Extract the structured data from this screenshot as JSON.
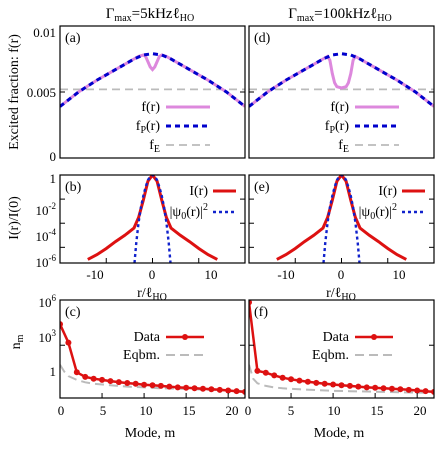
{
  "column_titles": [
    "Γmax=5kHzℓHO",
    "Γmax=100kHzℓHO"
  ],
  "legend_labels": {
    "f": "f(r)",
    "fP": "fP(r)",
    "fE": "fE",
    "I": "I(r)",
    "psi": "|ψ0(r)|2",
    "data": "Data",
    "eqbm": "Eqbm."
  },
  "colors": {
    "f": "#dd88dd",
    "fP": "#0000cc",
    "fE": "#bbbbbb",
    "I": "#dd1111",
    "psi": "#1122cc",
    "data": "#dd1111",
    "eqbm": "#bbbbbb"
  },
  "chart_data": [
    {
      "id": "a",
      "type": "line",
      "panel_label": "(a)",
      "ylabel": "Excited fraction: f(r)",
      "xlim": [
        -20,
        20
      ],
      "ylim": [
        0,
        0.01
      ],
      "yticks": [
        "0",
        "0.005",
        "0.01"
      ],
      "series": [
        {
          "name": "f(r)",
          "x": [
            -20,
            -16,
            -12,
            -8,
            -6,
            -4,
            -3,
            -2,
            -1.5,
            -1,
            -0.5,
            0,
            0.5,
            1,
            1.5,
            2,
            3,
            4,
            6,
            8,
            12,
            16,
            20
          ],
          "y": [
            0.0039,
            0.005,
            0.0059,
            0.0067,
            0.0071,
            0.0075,
            0.0077,
            0.0078,
            0.0077,
            0.0073,
            0.0069,
            0.0067,
            0.0069,
            0.0073,
            0.0077,
            0.0078,
            0.0077,
            0.0075,
            0.0071,
            0.0067,
            0.0059,
            0.005,
            0.0039
          ]
        },
        {
          "name": "fP(r)",
          "x": [
            -20,
            -16,
            -12,
            -8,
            -6,
            -4,
            -2,
            0,
            2,
            4,
            6,
            8,
            12,
            16,
            20
          ],
          "y": [
            0.0039,
            0.005,
            0.0059,
            0.0067,
            0.0071,
            0.0075,
            0.0078,
            0.0079,
            0.0078,
            0.0075,
            0.0071,
            0.0067,
            0.0059,
            0.005,
            0.0039
          ]
        },
        {
          "name": "fE",
          "x": [
            -20,
            20
          ],
          "y": [
            0.0052,
            0.0052
          ]
        }
      ]
    },
    {
      "id": "d",
      "type": "line",
      "panel_label": "(d)",
      "xlim": [
        -20,
        20
      ],
      "ylim": [
        0,
        0.01
      ],
      "series": [
        {
          "name": "f(r)",
          "x": [
            -20,
            -16,
            -12,
            -8,
            -6,
            -4,
            -3,
            -2.5,
            -2,
            -1.5,
            -1,
            0,
            1,
            1.5,
            2,
            2.5,
            3,
            4,
            6,
            8,
            12,
            16,
            20
          ],
          "y": [
            0.0039,
            0.005,
            0.0059,
            0.0067,
            0.0071,
            0.0075,
            0.0077,
            0.0074,
            0.0064,
            0.0057,
            0.0054,
            0.0053,
            0.0054,
            0.0057,
            0.0064,
            0.0074,
            0.0077,
            0.0075,
            0.0071,
            0.0067,
            0.0059,
            0.005,
            0.0039
          ]
        },
        {
          "name": "fP(r)",
          "x": [
            -20,
            -16,
            -12,
            -8,
            -6,
            -4,
            -2,
            0,
            2,
            4,
            6,
            8,
            12,
            16,
            20
          ],
          "y": [
            0.0039,
            0.005,
            0.0059,
            0.0067,
            0.0071,
            0.0075,
            0.0078,
            0.0079,
            0.0078,
            0.0075,
            0.0071,
            0.0067,
            0.0059,
            0.005,
            0.0039
          ]
        },
        {
          "name": "fE",
          "x": [
            -20,
            20
          ],
          "y": [
            0.0052,
            0.0052
          ]
        }
      ]
    },
    {
      "id": "b",
      "type": "line",
      "log_y": true,
      "panel_label": "(b)",
      "ylabel": "I(r)/I(0)",
      "xlim": [
        -20,
        20
      ],
      "ylim": [
        -7.3,
        0
      ],
      "yticks": [
        {
          "exp": 0,
          "label": "1"
        },
        {
          "exp": -2,
          "label": "10",
          "sup": "-2"
        },
        {
          "exp": -4,
          "label": "10",
          "sup": "-4"
        },
        {
          "exp": -6,
          "label": "10",
          "sup": "-6"
        }
      ],
      "series": [
        {
          "name": "I(r)",
          "x": [
            -14,
            -12,
            -10,
            -8,
            -6,
            -4,
            -3,
            -2,
            -1,
            0,
            1,
            2,
            3,
            4,
            6,
            8,
            10,
            12,
            14
          ],
          "y": [
            1e-07,
            2.5e-07,
            8e-07,
            3e-06,
            1e-05,
            4e-05,
            0.0003,
            0.008,
            0.3,
            1,
            0.3,
            0.008,
            0.0003,
            4e-05,
            1e-05,
            3e-06,
            8e-07,
            2.5e-07,
            1e-07
          ]
        },
        {
          "name": "|ψ0(r)|2",
          "x": [
            -3.9,
            -3.5,
            -3,
            -2.5,
            -2,
            -1.5,
            -1,
            -0.5,
            0,
            0.5,
            1,
            1.5,
            2,
            2.5,
            3,
            3.5,
            3.9
          ],
          "y": [
            5e-08,
            2.5e-06,
            0.00012,
            0.002,
            0.018,
            0.1,
            0.37,
            0.78,
            1,
            0.78,
            0.37,
            0.1,
            0.018,
            0.002,
            0.00012,
            2.5e-06,
            5e-08
          ]
        }
      ]
    },
    {
      "id": "e",
      "type": "line",
      "log_y": true,
      "panel_label": "(e)",
      "xlim": [
        -20,
        20
      ],
      "ylim": [
        -7.3,
        0
      ],
      "series": [
        {
          "name": "I(r)",
          "x": [
            -14,
            -12,
            -10,
            -8,
            -6,
            -4,
            -3,
            -2,
            -1,
            0,
            1,
            2,
            3,
            4,
            6,
            8,
            10,
            12,
            14
          ],
          "y": [
            1e-07,
            2.5e-07,
            8e-07,
            3e-06,
            1e-05,
            4e-05,
            0.0003,
            0.008,
            0.3,
            1,
            0.3,
            0.008,
            0.0003,
            4e-05,
            1e-05,
            3e-06,
            8e-07,
            2.5e-07,
            1e-07
          ]
        },
        {
          "name": "|ψ0(r)|2",
          "x": [
            -3.9,
            -3.5,
            -3,
            -2.5,
            -2,
            -1.5,
            -1,
            -0.5,
            0,
            0.5,
            1,
            1.5,
            2,
            2.5,
            3,
            3.5,
            3.9
          ],
          "y": [
            5e-08,
            2.5e-06,
            0.00012,
            0.002,
            0.018,
            0.1,
            0.37,
            0.78,
            1,
            0.78,
            0.37,
            0.1,
            0.018,
            0.002,
            0.00012,
            2.5e-06,
            5e-08
          ]
        }
      ]
    },
    {
      "id": "c",
      "type": "line",
      "log_y": true,
      "panel_label": "(c)",
      "ylabel": "nm",
      "xlabel": "Mode, m",
      "xlim": [
        0,
        22
      ],
      "ylim": [
        -0.5,
        6
      ],
      "xticks": [
        "0",
        "5",
        "10",
        "15",
        "20"
      ],
      "yticks": [
        {
          "exp": 0,
          "label": "1"
        },
        {
          "exp": 3,
          "label": "10",
          "sup": "3"
        },
        {
          "exp": 6,
          "label": "10",
          "sup": "6"
        }
      ],
      "series": [
        {
          "name": "Data",
          "x": [
            0,
            1,
            2,
            3,
            4,
            5,
            6,
            7,
            8,
            9,
            10,
            11,
            12,
            13,
            14,
            15,
            16,
            17,
            18,
            19,
            20,
            21,
            22
          ],
          "y": [
            25000,
            1500,
            16,
            8,
            6,
            5,
            4.2,
            3.6,
            3.1,
            2.8,
            2.4,
            2.2,
            2.0,
            1.8,
            1.6,
            1.5,
            1.4,
            1.3,
            1.2,
            1.1,
            1.0,
            0.9,
            0.8
          ]
        },
        {
          "name": "Eqbm.",
          "x": [
            0,
            0.5,
            1,
            2,
            3,
            4,
            6,
            8,
            10,
            12,
            14,
            16,
            18,
            20,
            22
          ],
          "y": [
            50,
            18,
            9,
            5,
            3.5,
            2.8,
            2.2,
            1.8,
            1.6,
            1.4,
            1.3,
            1.2,
            1.1,
            1.0,
            0.9
          ]
        }
      ]
    },
    {
      "id": "f",
      "type": "line",
      "log_y": true,
      "panel_label": "(f)",
      "xlabel": "Mode, m",
      "xlim": [
        0,
        22
      ],
      "ylim": [
        -0.5,
        6
      ],
      "xticks": [
        "0",
        "5",
        "10",
        "15",
        "20"
      ],
      "series": [
        {
          "name": "Data",
          "x": [
            0,
            1,
            2,
            3,
            4,
            5,
            6,
            7,
            8,
            9,
            10,
            11,
            12,
            13,
            14,
            15,
            16,
            17,
            18,
            19,
            20,
            21,
            22
          ],
          "y": [
            700000,
            20,
            15,
            10,
            7,
            5.5,
            4.5,
            3.8,
            3.2,
            2.8,
            2.5,
            2.2,
            2.0,
            1.8,
            1.6,
            1.5,
            1.4,
            1.3,
            1.2,
            1.1,
            1.0,
            0.9,
            0.8
          ]
        },
        {
          "name": "Eqbm.",
          "x": [
            0,
            0.5,
            1,
            2,
            3,
            4,
            6,
            8,
            10,
            12,
            14,
            16,
            18,
            20,
            22
          ],
          "y": [
            50,
            6,
            3,
            2,
            1.6,
            1.4,
            1.2,
            1.05,
            0.95,
            0.9,
            0.85,
            0.8,
            0.75,
            0.72,
            0.7
          ]
        }
      ]
    }
  ],
  "axis_b_e": {
    "xticks": [
      "-10",
      "0",
      "10"
    ],
    "xlabel": "r/ℓHO"
  }
}
